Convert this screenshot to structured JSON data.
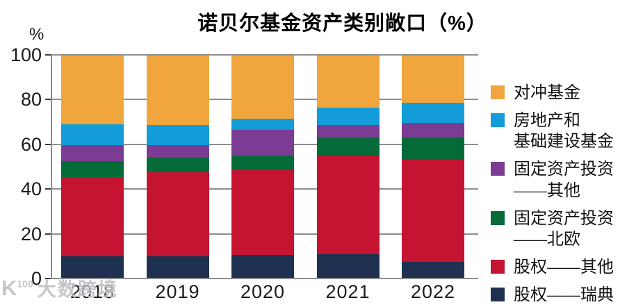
{
  "title": "诺贝尔基金资产类别敞口（%）",
  "y_axis_unit": "%",
  "watermark": {
    "logo_prefix": "K",
    "logo_sup": "100",
    "name": "大数跨境"
  },
  "colors": {
    "hedge_fund_orange": "#F0A63C",
    "real_estate_blue": "#149CD8",
    "fixed_other_purple": "#7B3C94",
    "fixed_nordic_green": "#046A38",
    "equity_other_red": "#C41431",
    "equity_sweden_navy": "#1E3151",
    "gridline_gray": "#8e8e8e"
  },
  "chart_data": {
    "type": "bar",
    "stacked": true,
    "title": "诺贝尔基金资产类别敞口（%）",
    "xlabel": "",
    "ylabel": "%",
    "ylim": [
      0,
      100
    ],
    "yticks": [
      0,
      20,
      40,
      60,
      80,
      100
    ],
    "grid": true,
    "legend_position": "right",
    "categories": [
      "2018",
      "2019",
      "2020",
      "2021",
      "2022"
    ],
    "series": [
      {
        "name": "股权——瑞典",
        "color": "#1E3151",
        "values": [
          10,
          10,
          10.5,
          11,
          7.5
        ]
      },
      {
        "name": "股权——其他",
        "color": "#C41431",
        "values": [
          35.5,
          37.5,
          38,
          44,
          45.5
        ]
      },
      {
        "name": "固定资产投资——北欧",
        "color": "#046A38",
        "values": [
          7,
          6.5,
          6.5,
          8,
          10
        ]
      },
      {
        "name": "固定资产投资——其他",
        "color": "#7B3C94",
        "values": [
          7,
          5.5,
          11.5,
          5.5,
          6.5
        ]
      },
      {
        "name": "房地产和基础建设基金",
        "color": "#149CD8",
        "values": [
          9.5,
          9,
          5,
          8,
          9
        ]
      },
      {
        "name": "对冲基金",
        "color": "#F0A63C",
        "values": [
          31,
          31.5,
          28.5,
          23.5,
          21.5
        ]
      }
    ],
    "legend": [
      {
        "color": "#F0A63C",
        "lines": [
          "对冲基金"
        ]
      },
      {
        "color": "#149CD8",
        "lines": [
          "房地产和",
          "基础建设基金"
        ]
      },
      {
        "color": "#7B3C94",
        "lines": [
          "固定资产投资",
          "——其他"
        ]
      },
      {
        "color": "#046A38",
        "lines": [
          "固定资产投资",
          "——北欧"
        ]
      },
      {
        "color": "#C41431",
        "lines": [
          "股权——其他"
        ]
      },
      {
        "color": "#1E3151",
        "lines": [
          "股权——瑞典"
        ]
      }
    ]
  }
}
